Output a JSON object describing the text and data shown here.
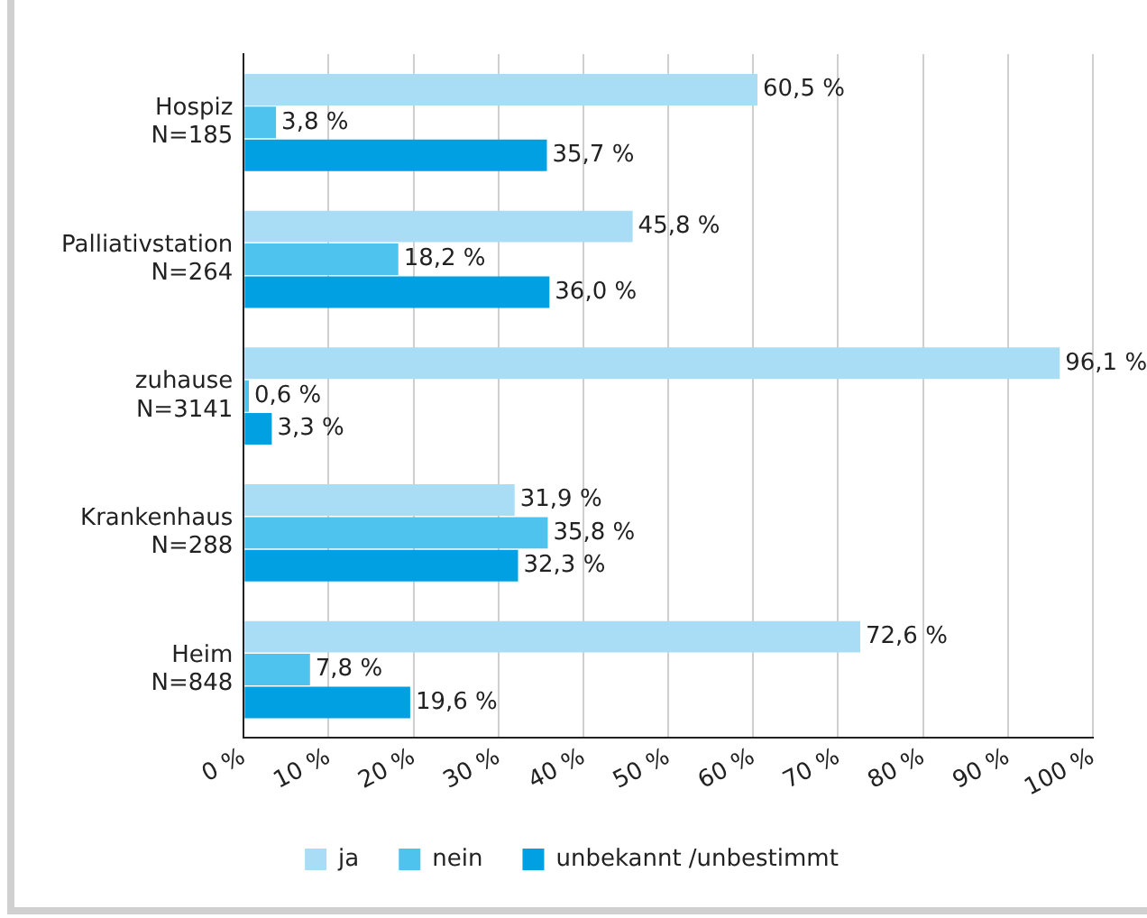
{
  "chart_data": {
    "type": "bar",
    "orientation": "horizontal",
    "categories": [
      "Hospiz\nN=185",
      "Palliativstation\nN=264",
      "zuhause\nN=3141",
      "Krankenhaus\nN=288",
      "Heim\nN=848"
    ],
    "series": [
      {
        "name": "ja",
        "color": "#a9ddf5",
        "values": [
          60.5,
          45.8,
          96.1,
          31.9,
          72.6
        ],
        "value_labels": [
          "60,5 %",
          "45,8 %",
          "96,1 %",
          "31,9 %",
          "72,6 %"
        ]
      },
      {
        "name": "nein",
        "color": "#4dc3ee",
        "values": [
          3.8,
          18.2,
          0.6,
          35.8,
          7.8
        ],
        "value_labels": [
          "3,8 %",
          "18,2 %",
          "0,6 %",
          "35,8 %",
          "7,8 %"
        ]
      },
      {
        "name": "unbekannt /unbestimmt",
        "color": "#00a0e2",
        "values": [
          35.7,
          36.0,
          3.3,
          32.3,
          19.6
        ],
        "value_labels": [
          "35,7 %",
          "36,0 %",
          "3,3 %",
          "32,3 %",
          "19,6 %"
        ]
      }
    ],
    "xlim": [
      0,
      100
    ],
    "xticks": [
      {
        "value": 0,
        "label": "0 %"
      },
      {
        "value": 10,
        "label": "10 %"
      },
      {
        "value": 20,
        "label": "20 %"
      },
      {
        "value": 30,
        "label": "30 %"
      },
      {
        "value": 40,
        "label": "40 %"
      },
      {
        "value": 50,
        "label": "50 %"
      },
      {
        "value": 60,
        "label": "60 %"
      },
      {
        "value": 70,
        "label": "70 %"
      },
      {
        "value": 80,
        "label": "80 %"
      },
      {
        "value": 90,
        "label": "90 %"
      },
      {
        "value": 100,
        "label": "100 %"
      }
    ],
    "grid": "x",
    "legend": "bottom"
  }
}
